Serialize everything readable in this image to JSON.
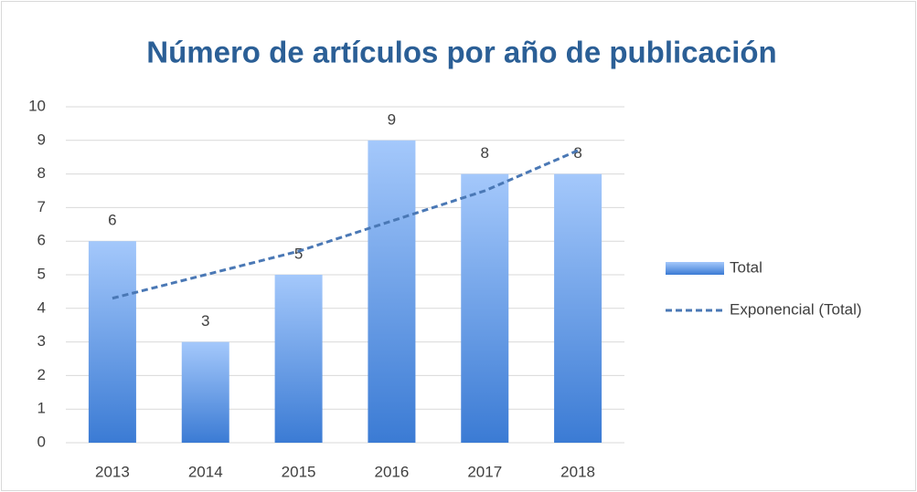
{
  "chart_data": {
    "type": "bar",
    "title": "Número de artículos por año de publicación",
    "categories": [
      "2013",
      "2014",
      "2015",
      "2016",
      "2017",
      "2018"
    ],
    "series": [
      {
        "name": "Total",
        "color": "#3b7bd4",
        "gradient": [
          "#a4c8fb",
          "#3b7bd4"
        ],
        "values": [
          6,
          3,
          5,
          9,
          8,
          8
        ]
      },
      {
        "name": "Exponencial (Total)",
        "type": "line",
        "dashed": true,
        "color": "#4a78b5",
        "values": [
          4.3,
          5.0,
          5.7,
          6.6,
          7.5,
          8.7
        ]
      }
    ],
    "ylim": [
      0,
      10
    ],
    "yticks": [
      0,
      1,
      2,
      3,
      4,
      5,
      6,
      7,
      8,
      9,
      10
    ],
    "grid": true,
    "legend": "right"
  }
}
